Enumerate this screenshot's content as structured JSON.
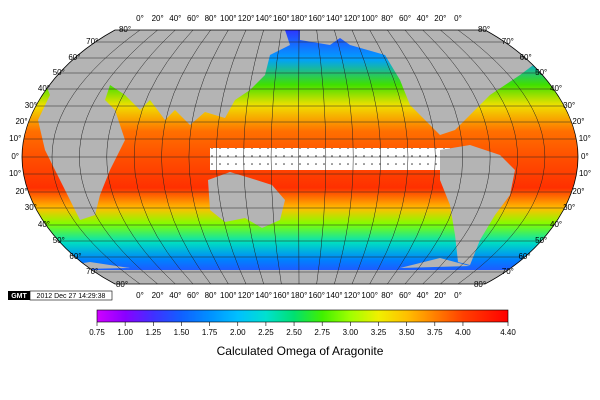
{
  "map": {
    "top_corner_labels": [
      "80°",
      "80°"
    ],
    "bottom_corner_labels": [
      "80°",
      "80°"
    ],
    "lon_labels": [
      "0°",
      "20°",
      "40°",
      "60°",
      "80°",
      "100°",
      "120°",
      "140°",
      "160°",
      "180°",
      "160°",
      "140°",
      "120°",
      "100°",
      "80°",
      "60°",
      "40°",
      "20°",
      "0°"
    ],
    "lat_labels": [
      "70°",
      "60°",
      "50°",
      "40°",
      "30°",
      "20°",
      "10°",
      "0°",
      "10°",
      "20°",
      "30°",
      "40°",
      "50°",
      "60°",
      "70°"
    ]
  },
  "stamp": {
    "logo": "GMT",
    "text": "2012 Dec 27 14:29:38"
  },
  "colorbar": {
    "title": "Calculated  Omega of Aragonite",
    "ticks": [
      0.75,
      {
        "value": 1.0,
        "label": "1.00"
      },
      1.25,
      {
        "value": 1.5,
        "label": "1.50"
      },
      1.75,
      {
        "value": 2.0,
        "label": "2.00"
      },
      2.25,
      {
        "value": 2.5,
        "label": "2.50"
      },
      2.75,
      {
        "value": 3.0,
        "label": "3.00"
      },
      3.25,
      {
        "value": 3.5,
        "label": "3.50"
      },
      3.75,
      {
        "value": 4.0,
        "label": "4.00"
      },
      {
        "value": 4.4,
        "label": "4.40"
      }
    ],
    "colors": [
      "#d000ff",
      "#8a00ff",
      "#4030ff",
      "#1060ff",
      "#0090ff",
      "#00c0ff",
      "#00e0d0",
      "#00e070",
      "#40f000",
      "#a0ff00",
      "#f0f000",
      "#ffc000",
      "#ff8000",
      "#ff4000",
      "#ff0000"
    ]
  }
}
